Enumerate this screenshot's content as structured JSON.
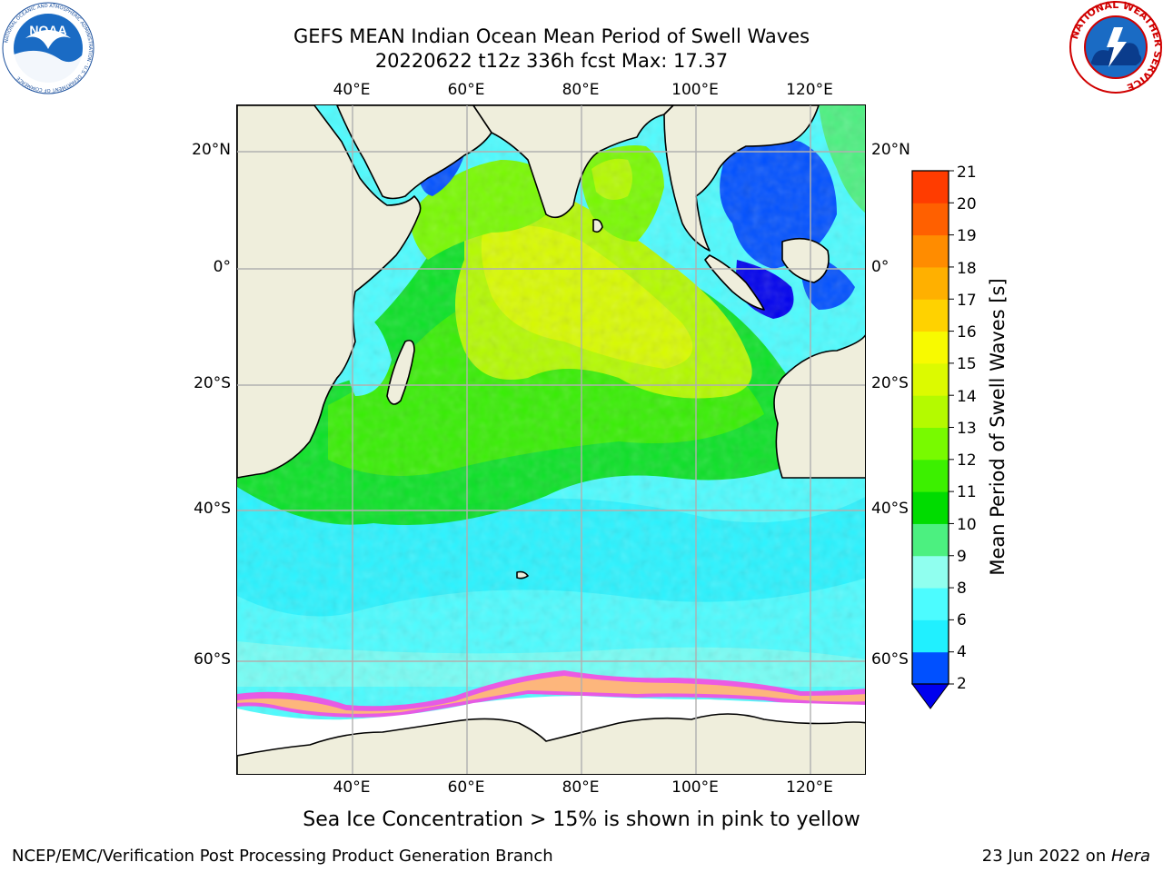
{
  "title_line1": "GEFS MEAN Indian Ocean Mean Period of Swell Waves",
  "title_line2": "20220622 t12z 336h fcst   Max: 17.37",
  "logos": {
    "noaa_text": "NOAA",
    "noaa_ring_text": "NATIONAL OCEANIC AND ATMOSPHERIC ADMINISTRATION · U.S. DEPARTMENT OF COMMERCE",
    "nws_ring_text": "NATIONAL WEATHER SERVICE"
  },
  "map": {
    "lon_ticks": [
      "40°E",
      "60°E",
      "80°E",
      "100°E",
      "120°E"
    ],
    "lat_ticks_left": [
      "20°N",
      "0°",
      "20°S",
      "40°S",
      "60°S"
    ],
    "lat_ticks_right": [
      "20°N",
      "0°",
      "20°S",
      "40°S",
      "60°S"
    ],
    "colors": {
      "land": "#efeedc",
      "ice_free_white": "#ffffff",
      "grid": "#b0b0b0",
      "coast": "#000000"
    }
  },
  "colorbar": {
    "title": "Mean Period of Swell Waves [s]",
    "labels": [
      "2",
      "4",
      "6",
      "8",
      "9",
      "10",
      "11",
      "12",
      "13",
      "14",
      "15",
      "16",
      "17",
      "18",
      "19",
      "20",
      "21"
    ],
    "colors": [
      "#0050ff",
      "#00c8ff",
      "#20f0ff",
      "#4cfcff",
      "#90ffef",
      "#4cf080",
      "#00dc00",
      "#3cf000",
      "#78fa00",
      "#b4fa00",
      "#dcfa00",
      "#f8fa00",
      "#ffd200",
      "#ffb000",
      "#ff8c00",
      "#ff6000",
      "#ff3c00",
      "#ff0000"
    ],
    "extend_color": "#0000ee"
  },
  "ice_note": "Sea Ice Concentration > 15% is shown in pink to yellow",
  "footer_left": "NCEP/EMC/Verification Post Processing Product Generation Branch",
  "footer_right_date": "23 Jun 2022 on ",
  "footer_right_host": "Hera"
}
